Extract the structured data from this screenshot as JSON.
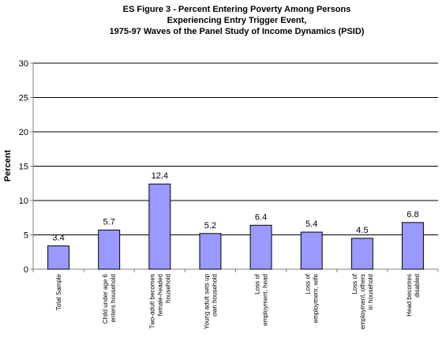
{
  "chart_data": {
    "type": "bar",
    "title_lines": [
      "ES Figure 3 - Percent Entering Poverty Among Persons",
      "Experiencing Entry Trigger Event,",
      "1975-97 Waves of the Panel Study of Income Dynamics (PSID)"
    ],
    "ylabel": "Percent",
    "ylim": [
      0,
      30
    ],
    "yticks": [
      0,
      5,
      10,
      15,
      20,
      25,
      30
    ],
    "grid": true,
    "legend": "none",
    "colors": {
      "bar_fill": "#9999ff",
      "bar_stroke": "#000000",
      "grid": "#000000",
      "axis": "#808080"
    },
    "categories": [
      [
        "Total Sample"
      ],
      [
        "Child under age 6",
        "enters household"
      ],
      [
        "Two-adult becomes",
        "female-headed",
        "household"
      ],
      [
        "Young adult sets up",
        "own household"
      ],
      [
        "Loss of",
        "employment, head"
      ],
      [
        "Loss of",
        "employment, wife"
      ],
      [
        "Loss of",
        "employment, others",
        "in household"
      ],
      [
        "Head becomes",
        "disabled"
      ]
    ],
    "values": [
      3.4,
      5.7,
      12.4,
      5.2,
      6.4,
      5.4,
      4.5,
      6.8
    ],
    "data_labels": [
      "3.4",
      "5.7",
      "12.4",
      "5.2",
      "6.4",
      "5.4",
      "4.5",
      "6.8"
    ]
  }
}
